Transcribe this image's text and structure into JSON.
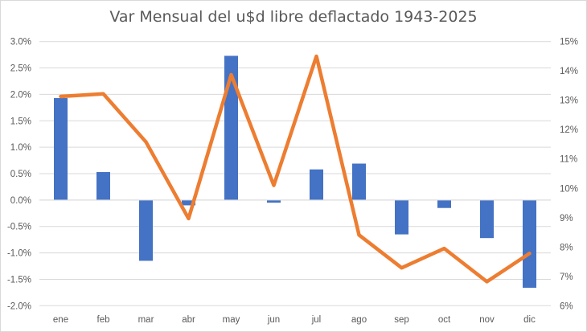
{
  "chart_data": {
    "type": "bar+line",
    "title": "Var Mensual del u$d libre deflactado 1943-2025",
    "categories": [
      "ene",
      "feb",
      "mar",
      "abr",
      "may",
      "jun",
      "jul",
      "ago",
      "sep",
      "oct",
      "nov",
      "dic"
    ],
    "series": [
      {
        "type": "bar",
        "axis": "left",
        "color": "#4472C4",
        "values": [
          1.93,
          0.53,
          -1.15,
          -0.1,
          2.73,
          -0.05,
          0.58,
          0.69,
          -0.65,
          -0.15,
          -0.72,
          -1.66
        ]
      },
      {
        "type": "line",
        "axis": "right",
        "color": "#ED7D31",
        "values": [
          13.13,
          13.22,
          11.58,
          8.97,
          13.87,
          10.1,
          14.5,
          8.41,
          7.29,
          7.95,
          6.82,
          7.78
        ]
      }
    ],
    "y_left": {
      "range": [
        -2.0,
        3.0
      ],
      "step": 0.5,
      "ticks": [
        "-2.0%",
        "-1.5%",
        "-1.0%",
        "-0.5%",
        "0.0%",
        "0.5%",
        "1.0%",
        "1.5%",
        "2.0%",
        "2.5%",
        "3.0%"
      ]
    },
    "y_right": {
      "range": [
        6,
        15
      ],
      "step": 1,
      "ticks": [
        "6%",
        "7%",
        "8%",
        "9%",
        "10%",
        "11%",
        "12%",
        "13%",
        "14%",
        "15%"
      ]
    },
    "grid": true,
    "legend": "none"
  }
}
